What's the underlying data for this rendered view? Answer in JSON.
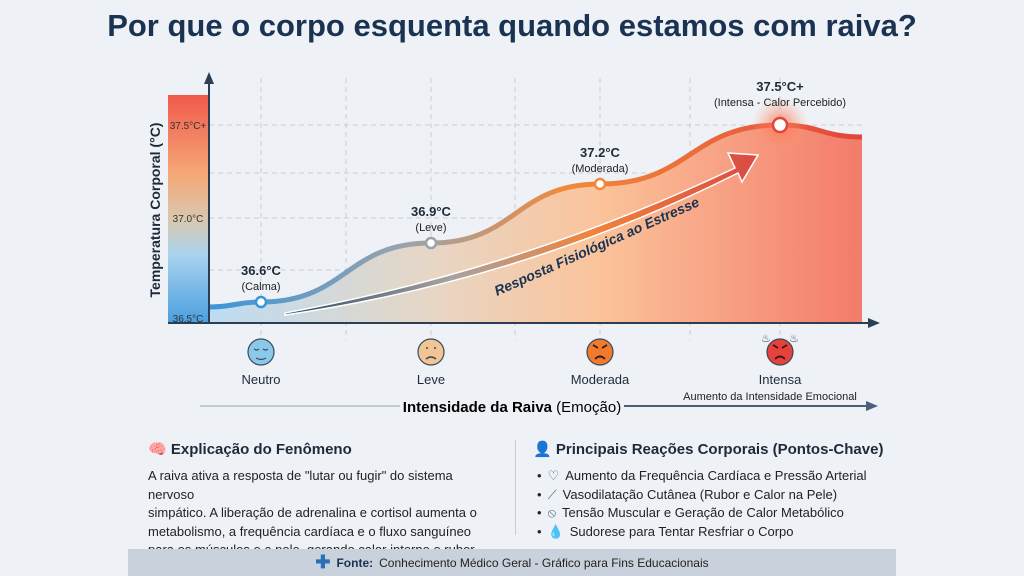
{
  "title": "Por que o corpo esquenta quando estamos com raiva?",
  "chart_data": {
    "type": "area",
    "ylabel": "Temperatura Corporal (°C)",
    "xlabel_bold": "Intensidade da Raiva",
    "xlabel_rest": "(Emoção)",
    "x_annotation": "Aumento da Intensidade Emocional",
    "y_ticks": [
      {
        "value": 37.5,
        "label": "37.5°C+"
      },
      {
        "value": 37.0,
        "label": "37.0°C"
      },
      {
        "value": 36.5,
        "label": "36.5°C"
      }
    ],
    "ylim": [
      36.5,
      37.5
    ],
    "grid": true,
    "categories": [
      "Neutro",
      "Leve",
      "Moderada",
      "Intensa"
    ],
    "points": [
      {
        "value": 36.6,
        "label": "36.6°C",
        "sub": "(Calma)",
        "face": "calm-face",
        "color": "#8cc8ea"
      },
      {
        "value": 36.9,
        "label": "36.9°C",
        "sub": "(Leve)",
        "face": "frown-face",
        "color": "#f2c596"
      },
      {
        "value": 37.2,
        "label": "37.2°C",
        "sub": "(Moderada)",
        "face": "angry-face",
        "color": "#f07a2e"
      },
      {
        "value": 37.5,
        "label": "37.5°C+",
        "sub": "(Intensa - Calor Percebido)",
        "face": "furious-face",
        "color": "#e8403a"
      }
    ],
    "arrow_label": "Resposta Fisiológica ao Estresse",
    "colors": {
      "cool": "#3b95d8",
      "mid": "#f08a3a",
      "hot": "#e2453c"
    }
  },
  "explanation": {
    "heading": "Explicação do Fenômeno",
    "lines": [
      "A raiva ativa a resposta de \"lutar ou fugir\" do sistema nervoso",
      "simpático. A liberação de adrenalina e cortisol aumenta o",
      "metabolismo, a frequência cardíaca e o fluxo sanguíneo",
      "para os músculos e a pele, gerando calor interno e rubor."
    ]
  },
  "reactions": {
    "heading": "Principais Reações Corporais (Pontos-Chave)",
    "items": [
      {
        "icon": "heart-icon",
        "text": "Aumento da Frequência Cardíaca e Pressão Arterial"
      },
      {
        "icon": "blood-vessel-icon",
        "text": "Vasodilatação Cutânea (Rubor e Calor na Pele)"
      },
      {
        "icon": "muscle-icon",
        "text": "Tensão Muscular e Geração de Calor Metabólico"
      },
      {
        "icon": "drop-icon",
        "text": "Sudorese para Tentar Resfriar o Corpo"
      }
    ]
  },
  "footer": {
    "label": "Fonte:",
    "text": "Conhecimento Médico Geral - Gráfico para Fins Educacionais"
  }
}
